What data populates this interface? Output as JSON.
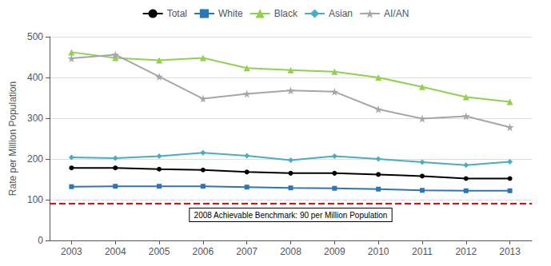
{
  "chart_data": {
    "type": "line",
    "x": [
      2003,
      2004,
      2005,
      2006,
      2007,
      2008,
      2009,
      2010,
      2011,
      2012,
      2013
    ],
    "series": [
      {
        "name": "Total",
        "color": "#000000",
        "marker": "circle",
        "values": [
          178,
          178,
          175,
          173,
          168,
          165,
          165,
          162,
          158,
          152,
          152
        ]
      },
      {
        "name": "White",
        "color": "#2E75B6",
        "marker": "square",
        "values": [
          132,
          133,
          133,
          133,
          131,
          129,
          128,
          126,
          123,
          122,
          122
        ]
      },
      {
        "name": "Black",
        "color": "#92D050",
        "marker": "triangle",
        "values": [
          462,
          448,
          442,
          448,
          423,
          418,
          414,
          400,
          377,
          352,
          340
        ]
      },
      {
        "name": "Asian",
        "color": "#4BACC6",
        "marker": "diamond",
        "values": [
          204,
          202,
          207,
          215,
          208,
          197,
          207,
          200,
          192,
          185,
          193
        ]
      },
      {
        "name": "AI/AN",
        "color": "#A6A6A6",
        "marker": "star",
        "values": [
          447,
          456,
          402,
          348,
          360,
          368,
          365,
          322,
          299,
          305,
          278
        ]
      }
    ],
    "benchmark": {
      "value": 90,
      "label": "2008 Achievable Benchmark: 90 per Million Population",
      "color": "red",
      "line_style": "dashed"
    },
    "ylabel": "Rate per Million Population",
    "xlim": [
      2002.5,
      2013.5
    ],
    "xticks": [
      2003,
      2004,
      2005,
      2006,
      2007,
      2008,
      2009,
      2010,
      2011,
      2012,
      2013
    ],
    "ylim": [
      0,
      500
    ],
    "yticks": [
      0,
      100,
      200,
      300,
      400,
      500
    ],
    "grid": true,
    "legend": "top"
  }
}
